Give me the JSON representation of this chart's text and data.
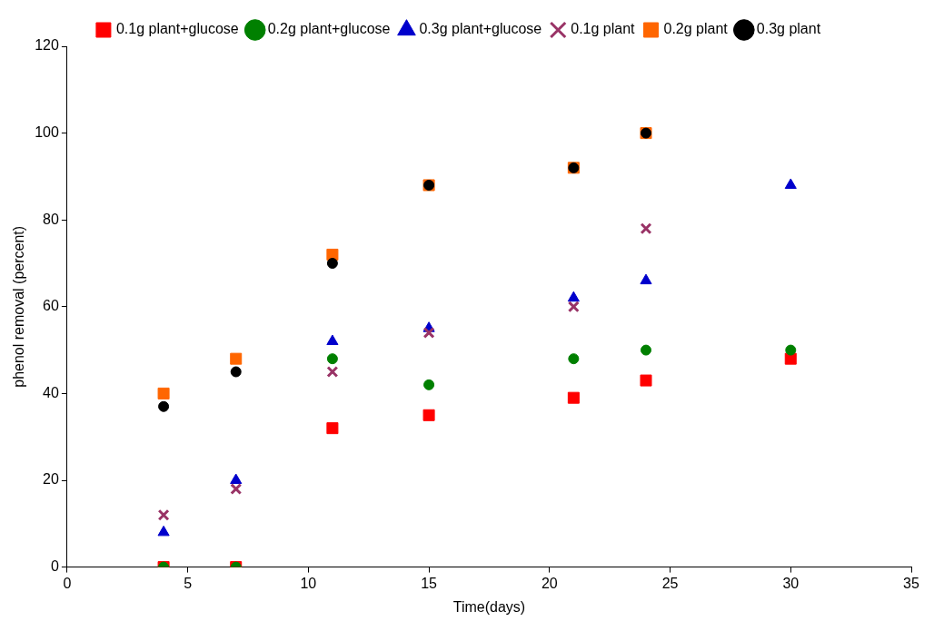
{
  "chart_data": {
    "type": "scatter",
    "xlabel": "Time(days)",
    "ylabel": "phenol removal (percent)",
    "xlim": [
      0,
      35
    ],
    "xticks": [
      0,
      5,
      10,
      15,
      20,
      25,
      30,
      35
    ],
    "ylim": [
      0,
      120
    ],
    "yticks": [
      0,
      20,
      40,
      60,
      80,
      100,
      120
    ],
    "grid": false,
    "legend": "top",
    "series": [
      {
        "name": "0.1g plant+glucose",
        "color": "#ff0000",
        "marker": "square",
        "x": [
          4,
          7,
          11,
          15,
          21,
          24,
          30
        ],
        "values": [
          0,
          0,
          32,
          35,
          39,
          43,
          48
        ]
      },
      {
        "name": "0.2g plant+glucose",
        "color": "#008000",
        "marker": "circle",
        "x": [
          4,
          7,
          11,
          15,
          21,
          24,
          30
        ],
        "values": [
          0,
          0,
          48,
          42,
          48,
          50,
          50
        ]
      },
      {
        "name": "0.3g plant+glucose",
        "color": "#0000cc",
        "marker": "triangle",
        "x": [
          4,
          7,
          11,
          15,
          21,
          24,
          30
        ],
        "values": [
          8,
          20,
          52,
          55,
          62,
          66,
          88
        ]
      },
      {
        "name": "0.1g plant",
        "color": "#993366",
        "marker": "cross",
        "x": [
          4,
          7,
          11,
          15,
          21,
          24
        ],
        "values": [
          12,
          18,
          45,
          54,
          60,
          78
        ]
      },
      {
        "name": "0.2g plant",
        "color": "#ff6600",
        "marker": "square",
        "x": [
          4,
          7,
          11,
          15,
          21,
          24
        ],
        "values": [
          40,
          48,
          72,
          88,
          92,
          100
        ]
      },
      {
        "name": "0.3g plant",
        "color": "#000000",
        "marker": "circle",
        "x": [
          4,
          7,
          11,
          15,
          21,
          24
        ],
        "values": [
          37,
          45,
          70,
          88,
          92,
          100
        ]
      }
    ]
  }
}
